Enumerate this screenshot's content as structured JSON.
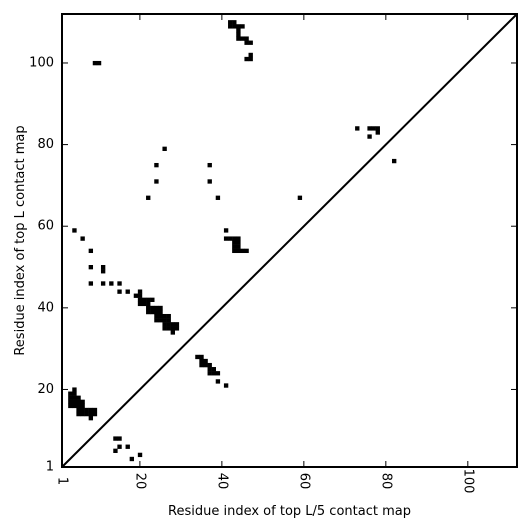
{
  "chart_data": {
    "type": "heatmap",
    "title": "",
    "xlabel": "Residue index of top L/5 contact map",
    "ylabel": "Residue index of top L contact map",
    "xlim": [
      1,
      112
    ],
    "ylim": [
      1,
      112
    ],
    "xticks": [
      "1",
      "20",
      "40",
      "60",
      "80",
      "100"
    ],
    "yticks": [
      "1",
      "20",
      "40",
      "60",
      "80",
      "100"
    ],
    "grid": false,
    "diagonal_line": true,
    "cells": [
      [
        9,
        100
      ],
      [
        10,
        100
      ],
      [
        42,
        110
      ],
      [
        43,
        110
      ],
      [
        42,
        109
      ],
      [
        43,
        109
      ],
      [
        44,
        109
      ],
      [
        45,
        109
      ],
      [
        44,
        108
      ],
      [
        44,
        107
      ],
      [
        44,
        106
      ],
      [
        45,
        106
      ],
      [
        46,
        106
      ],
      [
        46,
        105
      ],
      [
        47,
        105
      ],
      [
        47,
        102
      ],
      [
        46,
        101
      ],
      [
        47,
        101
      ],
      [
        73,
        84
      ],
      [
        76,
        84
      ],
      [
        77,
        84
      ],
      [
        78,
        84
      ],
      [
        78,
        83
      ],
      [
        76,
        82
      ],
      [
        82,
        76
      ],
      [
        26,
        79
      ],
      [
        24,
        75
      ],
      [
        37,
        75
      ],
      [
        24,
        71
      ],
      [
        37,
        71
      ],
      [
        22,
        67
      ],
      [
        39,
        67
      ],
      [
        59,
        67
      ],
      [
        41,
        59
      ],
      [
        41,
        57
      ],
      [
        42,
        57
      ],
      [
        43,
        57
      ],
      [
        44,
        57
      ],
      [
        43,
        56
      ],
      [
        44,
        56
      ],
      [
        43,
        55
      ],
      [
        44,
        55
      ],
      [
        43,
        54
      ],
      [
        44,
        54
      ],
      [
        45,
        54
      ],
      [
        46,
        54
      ],
      [
        4,
        59
      ],
      [
        6,
        57
      ],
      [
        8,
        54
      ],
      [
        8,
        50
      ],
      [
        11,
        50
      ],
      [
        11,
        49
      ],
      [
        8,
        46
      ],
      [
        11,
        46
      ],
      [
        13,
        46
      ],
      [
        15,
        46
      ],
      [
        15,
        44
      ],
      [
        17,
        44
      ],
      [
        19,
        43
      ],
      [
        20,
        44
      ],
      [
        20,
        43
      ],
      [
        20,
        42
      ],
      [
        21,
        42
      ],
      [
        22,
        42
      ],
      [
        23,
        42
      ],
      [
        20,
        41
      ],
      [
        21,
        41
      ],
      [
        22,
        41
      ],
      [
        22,
        40
      ],
      [
        23,
        40
      ],
      [
        24,
        40
      ],
      [
        25,
        40
      ],
      [
        22,
        39
      ],
      [
        23,
        39
      ],
      [
        24,
        39
      ],
      [
        25,
        39
      ],
      [
        24,
        38
      ],
      [
        25,
        38
      ],
      [
        26,
        38
      ],
      [
        27,
        38
      ],
      [
        24,
        37
      ],
      [
        25,
        37
      ],
      [
        26,
        37
      ],
      [
        27,
        37
      ],
      [
        26,
        36
      ],
      [
        27,
        36
      ],
      [
        28,
        36
      ],
      [
        29,
        36
      ],
      [
        26,
        35
      ],
      [
        27,
        35
      ],
      [
        28,
        35
      ],
      [
        29,
        35
      ],
      [
        28,
        34
      ],
      [
        34,
        28
      ],
      [
        35,
        28
      ],
      [
        35,
        27
      ],
      [
        36,
        27
      ],
      [
        35,
        26
      ],
      [
        36,
        26
      ],
      [
        37,
        26
      ],
      [
        37,
        25
      ],
      [
        38,
        25
      ],
      [
        37,
        24
      ],
      [
        38,
        24
      ],
      [
        39,
        24
      ],
      [
        39,
        22
      ],
      [
        41,
        21
      ],
      [
        4,
        20
      ],
      [
        3,
        19
      ],
      [
        4,
        19
      ],
      [
        3,
        18
      ],
      [
        4,
        18
      ],
      [
        5,
        18
      ],
      [
        3,
        17
      ],
      [
        4,
        17
      ],
      [
        5,
        17
      ],
      [
        6,
        17
      ],
      [
        3,
        16
      ],
      [
        4,
        16
      ],
      [
        5,
        16
      ],
      [
        6,
        16
      ],
      [
        5,
        15
      ],
      [
        6,
        15
      ],
      [
        7,
        15
      ],
      [
        8,
        15
      ],
      [
        9,
        15
      ],
      [
        5,
        14
      ],
      [
        6,
        14
      ],
      [
        7,
        14
      ],
      [
        8,
        14
      ],
      [
        9,
        14
      ],
      [
        8,
        13
      ],
      [
        14,
        8
      ],
      [
        15,
        8
      ],
      [
        15,
        6
      ],
      [
        17,
        6
      ],
      [
        14,
        5
      ],
      [
        20,
        4
      ],
      [
        18,
        3
      ]
    ]
  },
  "colors": {
    "cell": "#000000",
    "background": "#ffffff",
    "frame": "#000000"
  }
}
